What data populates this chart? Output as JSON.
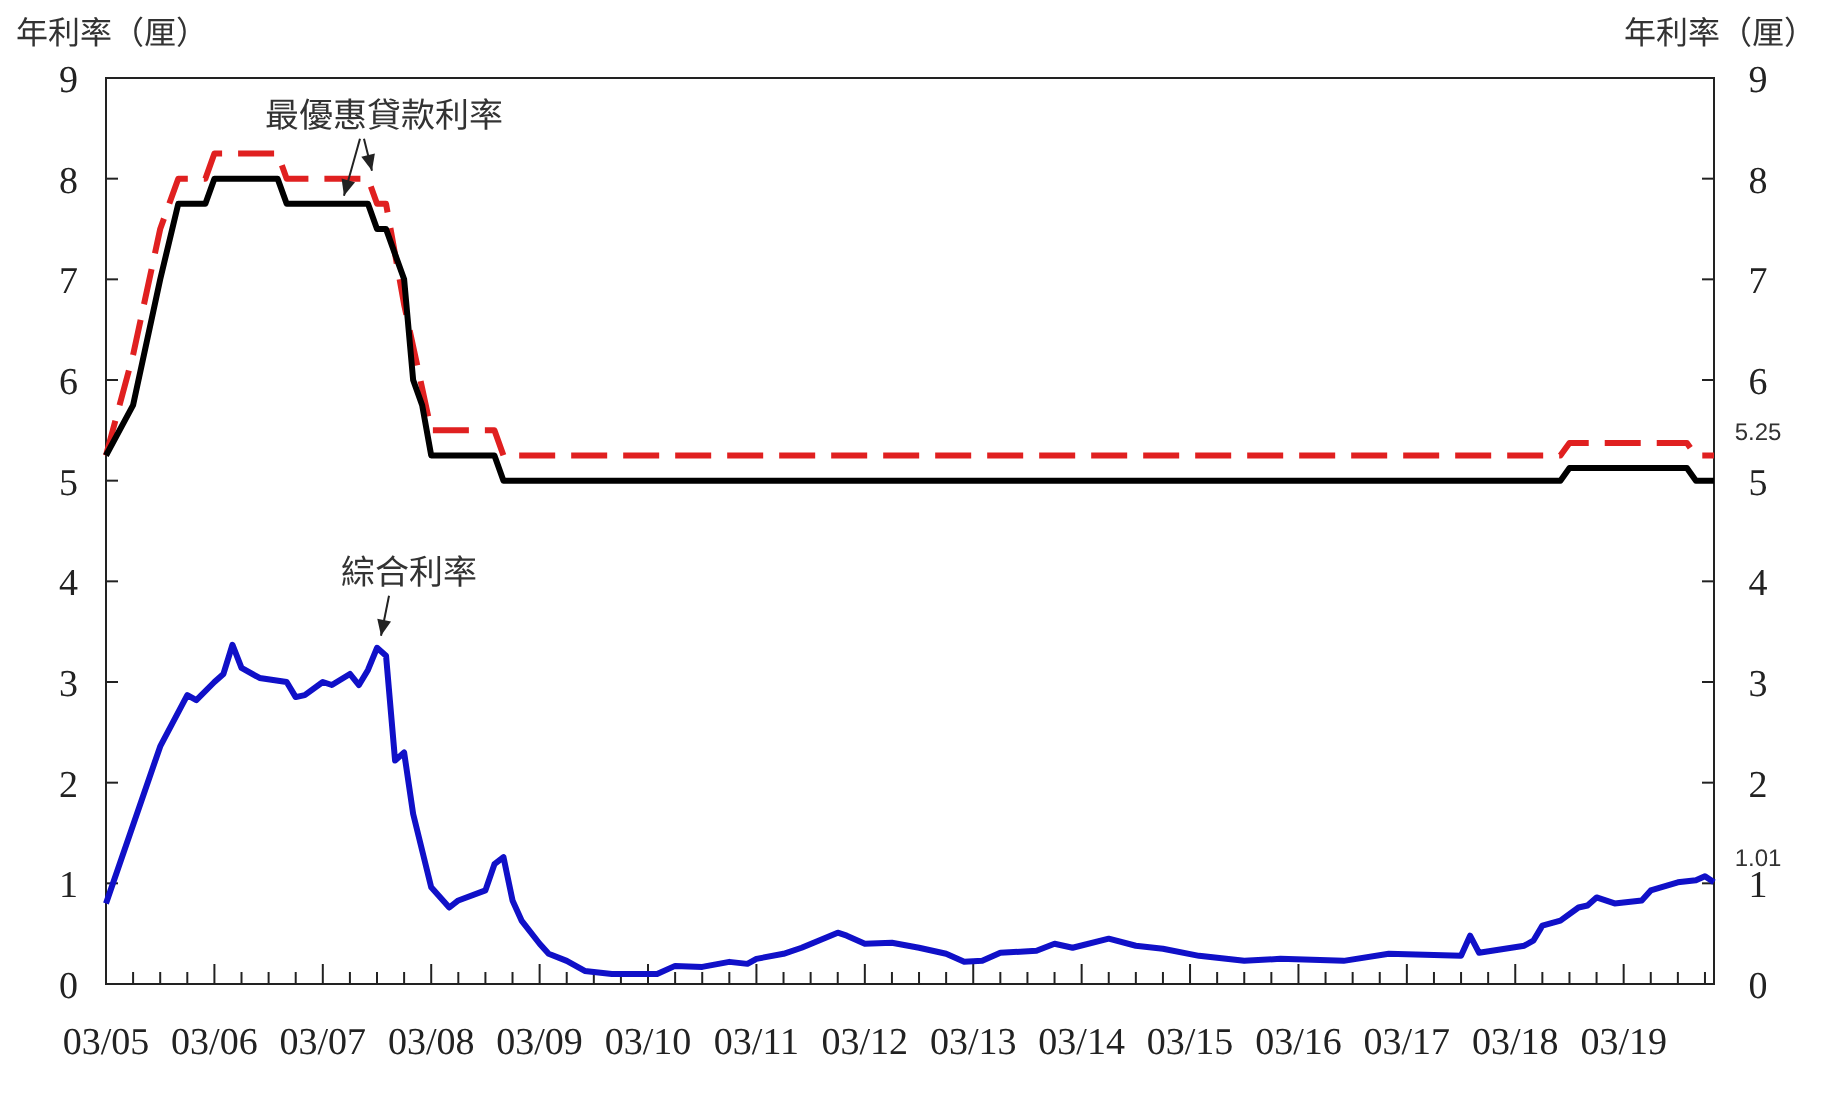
{
  "chart_data": {
    "type": "line",
    "ylabel": "年利率（厘）",
    "y2label": "年利率（厘）",
    "xlim": [
      "2005-03",
      "2020-01"
    ],
    "ylim": [
      0,
      9
    ],
    "yticks": [
      0,
      1,
      2,
      3,
      4,
      5,
      6,
      7,
      8,
      9
    ],
    "y2lim": [
      0,
      9
    ],
    "y2ticks": [
      0,
      1,
      2,
      3,
      4,
      5,
      6,
      7,
      8,
      9
    ],
    "xticks": [
      {
        "value": "2005-03",
        "label": "03/05"
      },
      {
        "value": "2005-06",
        "label": null
      },
      {
        "value": "2005-09",
        "label": null
      },
      {
        "value": "2005-12",
        "label": null
      },
      {
        "value": "2006-03",
        "label": "03/06"
      },
      {
        "value": "2006-06",
        "label": null
      },
      {
        "value": "2006-09",
        "label": null
      },
      {
        "value": "2006-12",
        "label": null
      },
      {
        "value": "2007-03",
        "label": "03/07"
      },
      {
        "value": "2007-06",
        "label": null
      },
      {
        "value": "2007-09",
        "label": null
      },
      {
        "value": "2007-12",
        "label": null
      },
      {
        "value": "2008-03",
        "label": "03/08"
      },
      {
        "value": "2008-06",
        "label": null
      },
      {
        "value": "2008-09",
        "label": null
      },
      {
        "value": "2008-12",
        "label": null
      },
      {
        "value": "2009-03",
        "label": "03/09"
      },
      {
        "value": "2009-06",
        "label": null
      },
      {
        "value": "2009-09",
        "label": null
      },
      {
        "value": "2009-12",
        "label": null
      },
      {
        "value": "2010-03",
        "label": "03/10"
      },
      {
        "value": "2010-06",
        "label": null
      },
      {
        "value": "2010-09",
        "label": null
      },
      {
        "value": "2010-12",
        "label": null
      },
      {
        "value": "2011-03",
        "label": "03/11"
      },
      {
        "value": "2011-06",
        "label": null
      },
      {
        "value": "2011-09",
        "label": null
      },
      {
        "value": "2011-12",
        "label": null
      },
      {
        "value": "2012-03",
        "label": "03/12"
      },
      {
        "value": "2012-06",
        "label": null
      },
      {
        "value": "2012-09",
        "label": null
      },
      {
        "value": "2012-12",
        "label": null
      },
      {
        "value": "2013-03",
        "label": "03/13"
      },
      {
        "value": "2013-06",
        "label": null
      },
      {
        "value": "2013-09",
        "label": null
      },
      {
        "value": "2013-12",
        "label": null
      },
      {
        "value": "2014-03",
        "label": "03/14"
      },
      {
        "value": "2014-06",
        "label": null
      },
      {
        "value": "2014-09",
        "label": null
      },
      {
        "value": "2014-12",
        "label": null
      },
      {
        "value": "2015-03",
        "label": "03/15"
      },
      {
        "value": "2015-06",
        "label": null
      },
      {
        "value": "2015-09",
        "label": null
      },
      {
        "value": "2015-12",
        "label": null
      },
      {
        "value": "2016-03",
        "label": "03/16"
      },
      {
        "value": "2016-06",
        "label": null
      },
      {
        "value": "2016-09",
        "label": null
      },
      {
        "value": "2016-12",
        "label": null
      },
      {
        "value": "2017-03",
        "label": "03/17"
      },
      {
        "value": "2017-06",
        "label": null
      },
      {
        "value": "2017-09",
        "label": null
      },
      {
        "value": "2017-12",
        "label": null
      },
      {
        "value": "2018-03",
        "label": "03/18"
      },
      {
        "value": "2018-06",
        "label": null
      },
      {
        "value": "2018-09",
        "label": null
      },
      {
        "value": "2018-12",
        "label": null
      },
      {
        "value": "2019-03",
        "label": "03/19"
      },
      {
        "value": "2019-06",
        "label": null
      },
      {
        "value": "2019-09",
        "label": null
      },
      {
        "value": "2019-12",
        "label": null
      }
    ],
    "grid": false,
    "series": [
      {
        "color": "#e02020",
        "line_style": "dashed",
        "x": [
          "2005-03",
          "2005-06",
          "2005-09",
          "2005-11",
          "2006-02",
          "2006-03",
          "2006-10",
          "2006-11",
          "2007-08",
          "2007-09",
          "2007-10",
          "2007-12",
          "2008-03",
          "2008-10",
          "2008-11",
          "2018-08",
          "2018-09",
          "2019-10",
          "2019-11",
          "2020-01"
        ],
        "values": [
          5.25,
          6.25,
          7.5,
          8.0,
          8.0,
          8.25,
          8.25,
          8.0,
          8.0,
          7.75,
          7.75,
          6.75,
          5.5,
          5.5,
          5.25,
          5.25,
          5.375,
          5.375,
          5.25,
          5.25
        ]
      },
      {
        "color": "#000000",
        "line_style": "solid",
        "x": [
          "2005-03",
          "2005-06",
          "2005-09",
          "2005-11",
          "2006-02",
          "2006-03",
          "2006-10",
          "2006-11",
          "2007-08",
          "2007-09",
          "2007-10",
          "2007-12",
          "2008-01",
          "2008-02",
          "2008-03",
          "2008-10",
          "2008-11",
          "2018-08",
          "2018-09",
          "2019-10",
          "2019-11",
          "2020-01"
        ],
        "values": [
          5.25,
          5.75,
          7.0,
          7.75,
          7.75,
          8.0,
          8.0,
          7.75,
          7.75,
          7.5,
          7.5,
          7.0,
          6.0,
          5.75,
          5.25,
          5.25,
          5.0,
          5.0,
          5.125,
          5.125,
          5.0,
          5.0
        ]
      },
      {
        "color": "#1010c8",
        "line_style": "solid",
        "x": [
          "2005-03",
          "2005-09",
          "2005-12",
          "2006-01",
          "2006-03",
          "2006-04",
          "2006-05",
          "2006-06",
          "2006-08",
          "2006-11",
          "2006-12",
          "2007-01",
          "2007-03",
          "2007-04",
          "2007-06",
          "2007-07",
          "2007-08",
          "2007-09",
          "2007-10",
          "2007-11",
          "2007-12",
          "2008-01",
          "2008-03",
          "2008-05",
          "2008-06",
          "2008-09",
          "2008-10",
          "2008-11",
          "2008-12",
          "2009-01",
          "2009-03",
          "2009-04",
          "2009-06",
          "2009-08",
          "2009-11",
          "2010-04",
          "2010-06",
          "2010-09",
          "2010-12",
          "2011-02",
          "2011-03",
          "2011-06",
          "2011-08",
          "2011-12",
          "2012-01",
          "2012-03",
          "2012-06",
          "2012-09",
          "2012-12",
          "2013-02",
          "2013-04",
          "2013-06",
          "2013-10",
          "2013-12",
          "2014-02",
          "2014-06",
          "2014-09",
          "2014-12",
          "2015-04",
          "2015-09",
          "2016-01",
          "2016-08",
          "2017-01",
          "2017-09",
          "2017-10",
          "2017-11",
          "2018-04",
          "2018-05",
          "2018-06",
          "2018-08",
          "2018-10",
          "2018-11",
          "2018-12",
          "2019-02",
          "2019-05",
          "2019-06",
          "2019-09",
          "2019-11",
          "2019-12",
          "2020-01"
        ],
        "values": [
          0.8,
          2.36,
          2.87,
          2.82,
          3.0,
          3.08,
          3.37,
          3.14,
          3.04,
          3.0,
          2.85,
          2.87,
          3.0,
          2.97,
          3.08,
          2.97,
          3.12,
          3.34,
          3.26,
          2.22,
          2.3,
          1.69,
          0.96,
          0.76,
          0.83,
          0.93,
          1.19,
          1.26,
          0.83,
          0.63,
          0.4,
          0.3,
          0.23,
          0.13,
          0.1,
          0.1,
          0.18,
          0.17,
          0.22,
          0.2,
          0.25,
          0.3,
          0.36,
          0.51,
          0.48,
          0.4,
          0.41,
          0.36,
          0.3,
          0.22,
          0.23,
          0.31,
          0.33,
          0.4,
          0.36,
          0.45,
          0.38,
          0.35,
          0.28,
          0.23,
          0.25,
          0.23,
          0.3,
          0.28,
          0.48,
          0.31,
          0.38,
          0.43,
          0.58,
          0.63,
          0.76,
          0.78,
          0.86,
          0.8,
          0.83,
          0.93,
          1.01,
          1.03,
          1.07,
          1.01
        ]
      }
    ],
    "annotations": [
      {
        "text": "最優惠貸款利率",
        "x": "2007-08",
        "y": 8.0
      },
      {
        "text": "綜合利率",
        "x": "2007-09",
        "y": 3.34
      },
      {
        "text": "5.25",
        "x": "2020-01",
        "y": 5.25
      },
      {
        "text": "1.01",
        "x": "2020-01",
        "y": 1.01
      }
    ]
  }
}
